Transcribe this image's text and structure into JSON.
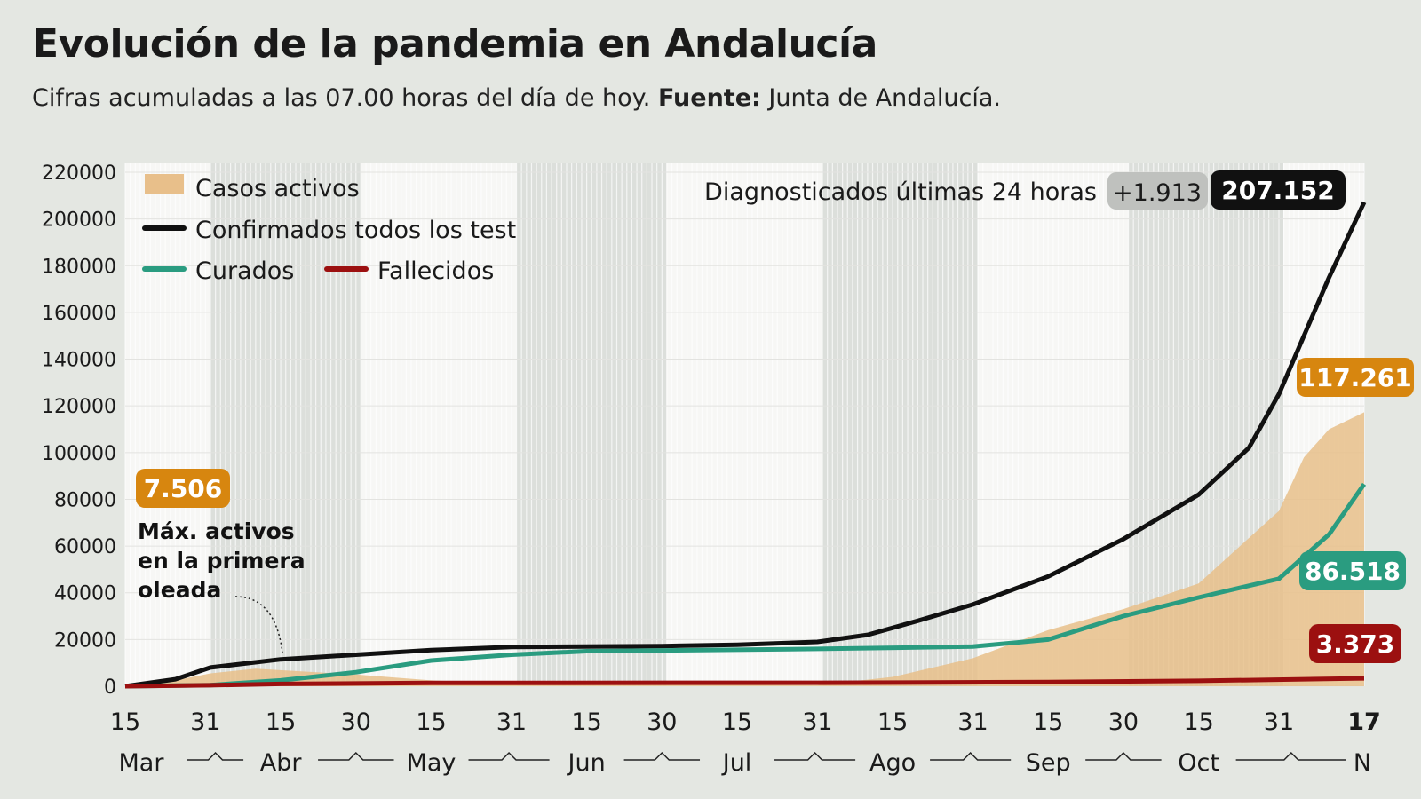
{
  "title": "Evolución de la pandemia en Andalucía",
  "subtitle": {
    "text": "Cifras acumuladas a las 07.00 horas del día de hoy.",
    "source_label": "Fuente:",
    "source": "Junta de Andalucía."
  },
  "chart_data": {
    "type": "line",
    "ylim": [
      0,
      220000
    ],
    "yticks": [
      0,
      20000,
      40000,
      60000,
      80000,
      100000,
      120000,
      140000,
      160000,
      180000,
      200000,
      220000
    ],
    "xlim": [
      "03-15",
      "11-17"
    ],
    "xticks": [
      {
        "x": "03-15",
        "label": "15"
      },
      {
        "x": "03-31",
        "label": "31"
      },
      {
        "x": "04-15",
        "label": "15"
      },
      {
        "x": "04-30",
        "label": "30"
      },
      {
        "x": "05-15",
        "label": "15"
      },
      {
        "x": "05-31",
        "label": "31"
      },
      {
        "x": "06-15",
        "label": "15"
      },
      {
        "x": "06-30",
        "label": "30"
      },
      {
        "x": "07-15",
        "label": "15"
      },
      {
        "x": "07-31",
        "label": "31"
      },
      {
        "x": "08-15",
        "label": "15"
      },
      {
        "x": "08-31",
        "label": "31"
      },
      {
        "x": "09-15",
        "label": "15"
      },
      {
        "x": "09-30",
        "label": "30"
      },
      {
        "x": "10-15",
        "label": "15"
      },
      {
        "x": "10-31",
        "label": "31"
      },
      {
        "x": "11-17",
        "label": "17"
      }
    ],
    "months": [
      {
        "x": "03-20",
        "label": "Mar"
      },
      {
        "x": "04-15",
        "label": "Abr"
      },
      {
        "x": "05-15",
        "label": "May"
      },
      {
        "x": "06-15",
        "label": "Jun"
      },
      {
        "x": "07-15",
        "label": "Jul"
      },
      {
        "x": "08-15",
        "label": "Ago"
      },
      {
        "x": "09-15",
        "label": "Sep"
      },
      {
        "x": "10-15",
        "label": "Oct"
      },
      {
        "x": "11-17",
        "label": "N"
      }
    ],
    "shaded_months": [
      [
        "04-01",
        "04-30"
      ],
      [
        "06-01",
        "06-30"
      ],
      [
        "08-01",
        "08-31"
      ],
      [
        "10-01",
        "10-31"
      ]
    ],
    "grid": true,
    "legend_position": "top-left",
    "series": [
      {
        "name": "Casos activos",
        "type": "area",
        "color": "#e8bf8a",
        "points": [
          [
            "03-15",
            0
          ],
          [
            "03-25",
            2500
          ],
          [
            "04-01",
            5500
          ],
          [
            "04-10",
            7506
          ],
          [
            "04-30",
            5000
          ],
          [
            "05-15",
            2500
          ],
          [
            "05-31",
            1000
          ],
          [
            "07-31",
            500
          ],
          [
            "08-15",
            4000
          ],
          [
            "08-31",
            12000
          ],
          [
            "09-15",
            24000
          ],
          [
            "09-30",
            33000
          ],
          [
            "10-15",
            44000
          ],
          [
            "10-31",
            75000
          ],
          [
            "11-05",
            98000
          ],
          [
            "11-10",
            110000
          ],
          [
            "11-17",
            117261
          ]
        ]
      },
      {
        "name": "Confirmados todos los test",
        "type": "line",
        "color": "#111111",
        "points": [
          [
            "03-15",
            0
          ],
          [
            "03-25",
            3000
          ],
          [
            "04-01",
            8000
          ],
          [
            "04-15",
            11500
          ],
          [
            "04-30",
            13500
          ],
          [
            "05-15",
            15500
          ],
          [
            "05-31",
            16800
          ],
          [
            "06-30",
            17200
          ],
          [
            "07-15",
            17800
          ],
          [
            "07-31",
            19000
          ],
          [
            "08-10",
            22000
          ],
          [
            "08-20",
            28000
          ],
          [
            "08-31",
            35000
          ],
          [
            "09-15",
            47000
          ],
          [
            "09-30",
            63000
          ],
          [
            "10-15",
            82000
          ],
          [
            "10-25",
            102000
          ],
          [
            "10-31",
            125000
          ],
          [
            "11-05",
            150000
          ],
          [
            "11-10",
            175000
          ],
          [
            "11-17",
            207152
          ]
        ]
      },
      {
        "name": "Curados",
        "type": "line",
        "color": "#2a9c80",
        "points": [
          [
            "03-15",
            0
          ],
          [
            "04-01",
            500
          ],
          [
            "04-15",
            2500
          ],
          [
            "04-30",
            6000
          ],
          [
            "05-15",
            11000
          ],
          [
            "05-31",
            13500
          ],
          [
            "06-15",
            15000
          ],
          [
            "07-31",
            16000
          ],
          [
            "08-31",
            17000
          ],
          [
            "09-15",
            20000
          ],
          [
            "09-30",
            30000
          ],
          [
            "10-15",
            38000
          ],
          [
            "10-31",
            46000
          ],
          [
            "11-10",
            65000
          ],
          [
            "11-17",
            86518
          ]
        ]
      },
      {
        "name": "Fallecidos",
        "type": "line",
        "color": "#9c1010",
        "points": [
          [
            "03-15",
            0
          ],
          [
            "04-01",
            400
          ],
          [
            "04-15",
            1000
          ],
          [
            "05-15",
            1400
          ],
          [
            "08-01",
            1500
          ],
          [
            "09-15",
            1800
          ],
          [
            "10-15",
            2300
          ],
          [
            "11-17",
            3373
          ]
        ]
      }
    ],
    "annotations": {
      "daily_label": "Diagnosticados últimas 24 horas",
      "daily_value": "+1.913",
      "total": "207.152",
      "active_end": "117.261",
      "recovered_end": "86.518",
      "deaths_end": "3.373",
      "first_wave_value": "7.506",
      "first_wave_x": "04-10",
      "first_wave_note": [
        "Máx. activos",
        "en la primera",
        "oleada"
      ]
    }
  }
}
